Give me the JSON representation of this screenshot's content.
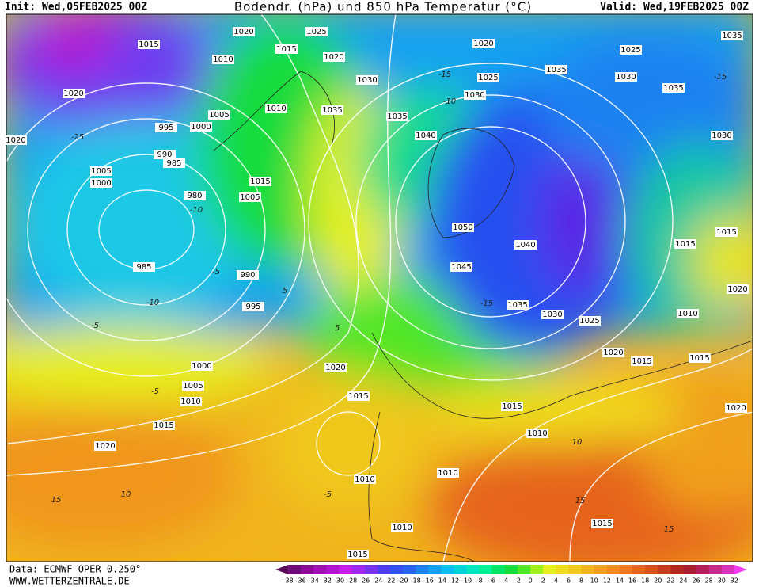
{
  "header": {
    "init": "Init: Wed,05FEB2025 00Z",
    "title": "Bodendr. (hPa) und 850 hPa Temperatur (°C)",
    "valid": "Valid: Wed,19FEB2025 00Z"
  },
  "isobar_labels": [
    1015,
    1020,
    1025,
    1015,
    1010,
    1020,
    1030,
    1020,
    1010,
    1005,
    1035,
    1035,
    995,
    1000,
    1020,
    990,
    985,
    1005,
    1000,
    980,
    1015,
    1005,
    1040,
    1050,
    1045,
    1040,
    985,
    990,
    995,
    1035,
    1030,
    1025,
    1020,
    1015,
    1000,
    1020,
    1005,
    1010,
    1015,
    1015,
    1020,
    1015,
    1010,
    1010,
    1010,
    1015,
    1010,
    1015,
    1035,
    1025,
    1030,
    1035,
    1030,
    1015,
    1015,
    1020,
    1010,
    1015,
    1020,
    1035,
    1025,
    1030,
    1020
  ],
  "temperature_labels": [
    -25,
    -10,
    -10,
    -5,
    -5,
    5,
    5,
    -5,
    10,
    15,
    10,
    15,
    15,
    -15,
    -10,
    -15,
    -15,
    -5
  ],
  "legend": {
    "ticks": [
      -38,
      -36,
      -34,
      -32,
      -30,
      -28,
      -26,
      -24,
      -22,
      -20,
      -18,
      -16,
      -14,
      -12,
      -10,
      -8,
      -6,
      -4,
      -2,
      0,
      2,
      4,
      6,
      8,
      10,
      12,
      14,
      16,
      18,
      20,
      22,
      24,
      26,
      28,
      30,
      32
    ],
    "colors": [
      "#5a0a5a",
      "#6e0a78",
      "#8a0a96",
      "#a010b4",
      "#b414d2",
      "#c81ef0",
      "#a028f0",
      "#7832f0",
      "#503cf0",
      "#3250f0",
      "#2864f0",
      "#1e82f0",
      "#14a0f0",
      "#0abef0",
      "#00d2dc",
      "#00e6be",
      "#00f096",
      "#00e664",
      "#14dc3c",
      "#50e628",
      "#a0f01e",
      "#e6f01e",
      "#f0dc1e",
      "#f0c81e",
      "#f0b41e",
      "#f0a01e",
      "#f08c1e",
      "#f0781e",
      "#e6641e",
      "#dc501e",
      "#c83c1e",
      "#b4281e",
      "#aa1e32",
      "#b41e5a",
      "#c8288c",
      "#dc32be",
      "#f03cf0"
    ]
  },
  "footer": {
    "source": "Data: ECMWF OPER 0.250°",
    "site": "WWW.WETTERZENTRALE.DE"
  }
}
